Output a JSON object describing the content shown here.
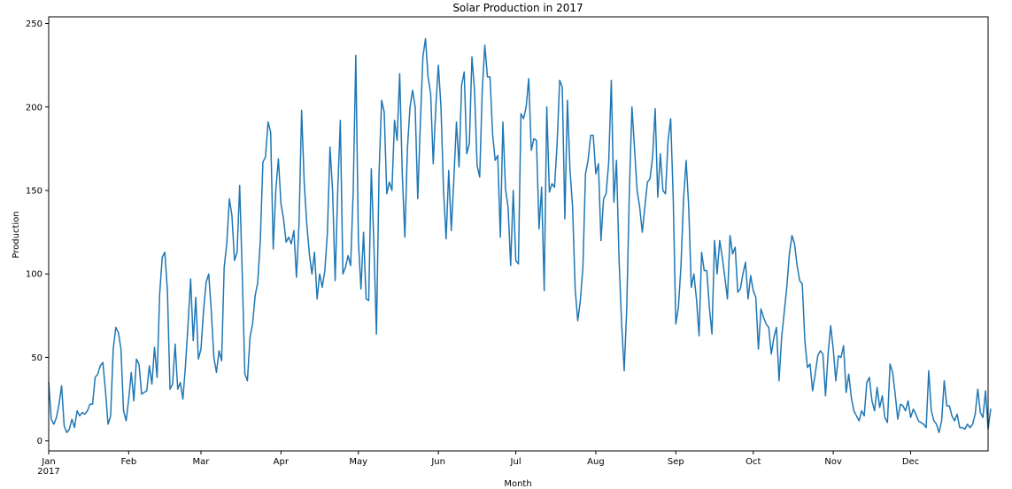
{
  "chart_data": {
    "type": "line",
    "title": "Solar Production in 2017",
    "xlabel": "Month",
    "ylabel": "Production",
    "x_start": "2017-01-01",
    "x_end": "2017-12-31",
    "x_ticks": [
      "Jan",
      "Feb",
      "Mar",
      "Apr",
      "May",
      "Jun",
      "Jul",
      "Aug",
      "Sep",
      "Oct",
      "Nov",
      "Dec"
    ],
    "x_year_label": "2017",
    "y_ticks": [
      0,
      50,
      100,
      150,
      200,
      250
    ],
    "ylim": [
      -6,
      254
    ],
    "grid": false,
    "series": [
      {
        "color": "#1f77b4",
        "values": [
          35,
          13,
          10,
          14,
          22,
          33,
          9,
          5,
          7,
          13,
          8,
          18,
          15,
          17,
          16,
          18,
          22,
          22,
          38,
          40,
          45,
          47,
          30,
          10,
          15,
          55,
          68,
          65,
          55,
          18,
          12,
          25,
          41,
          24,
          49,
          46,
          28,
          29,
          30,
          45,
          34,
          56,
          38,
          88,
          110,
          113,
          90,
          31,
          34,
          58,
          31,
          35,
          25,
          45,
          70,
          97,
          60,
          86,
          49,
          55,
          78,
          95,
          100,
          78,
          50,
          41,
          54,
          48,
          104,
          118,
          145,
          135,
          108,
          113,
          153,
          100,
          40,
          36,
          62,
          70,
          87,
          95,
          120,
          167,
          170,
          191,
          185,
          115,
          150,
          169,
          142,
          133,
          119,
          122,
          118,
          126,
          98,
          130,
          198,
          155,
          130,
          112,
          100,
          113,
          85,
          100,
          92,
          102,
          125,
          176,
          150,
          96,
          150,
          192,
          100,
          104,
          111,
          105,
          150,
          231,
          120,
          91,
          125,
          85,
          84,
          163,
          118,
          64,
          160,
          204,
          197,
          148,
          155,
          150,
          192,
          180,
          220,
          160,
          122,
          175,
          200,
          210,
          200,
          145,
          190,
          230,
          241,
          218,
          208,
          166,
          200,
          225,
          200,
          150,
          121,
          162,
          126,
          157,
          191,
          164,
          213,
          221,
          172,
          178,
          230,
          210,
          165,
          158,
          210,
          237,
          218,
          218,
          184,
          168,
          171,
          122,
          191,
          151,
          140,
          105,
          150,
          108,
          106,
          196,
          193,
          200,
          217,
          174,
          181,
          180,
          127,
          152,
          90,
          200,
          149,
          154,
          152,
          178,
          216,
          212,
          133,
          204,
          162,
          140,
          91,
          72,
          84,
          104,
          160,
          168,
          183,
          183,
          160,
          166,
          120,
          145,
          148,
          167,
          216,
          143,
          168,
          109,
          70,
          42,
          80,
          150,
          200,
          175,
          150,
          140,
          125,
          140,
          155,
          157,
          170,
          199,
          146,
          172,
          150,
          148,
          180,
          193,
          145,
          70,
          80,
          105,
          145,
          168,
          140,
          92,
          100,
          85,
          63,
          113,
          102,
          102,
          80,
          64,
          120,
          100,
          120,
          110,
          98,
          85,
          123,
          112,
          116,
          89,
          91,
          100,
          107,
          85,
          99,
          90,
          86,
          55,
          79,
          74,
          70,
          68,
          52,
          62,
          68,
          36,
          62,
          77,
          92,
          112,
          123,
          118,
          105,
          96,
          94,
          60,
          44,
          46,
          30,
          40,
          51,
          54,
          52,
          27,
          52,
          69,
          55,
          36,
          51,
          50,
          57,
          29,
          40,
          26,
          18,
          15,
          12,
          18,
          15,
          35,
          38,
          24,
          18,
          32,
          20,
          27,
          14,
          11,
          46,
          41,
          28,
          13,
          22,
          21,
          18,
          24,
          14,
          19,
          16,
          12,
          11,
          10,
          8,
          42,
          18,
          12,
          10,
          5,
          12,
          36,
          21,
          21,
          15,
          12,
          16,
          8,
          8,
          7,
          10,
          8,
          10,
          16,
          31,
          17,
          14,
          30,
          7,
          19
        ]
      }
    ]
  }
}
